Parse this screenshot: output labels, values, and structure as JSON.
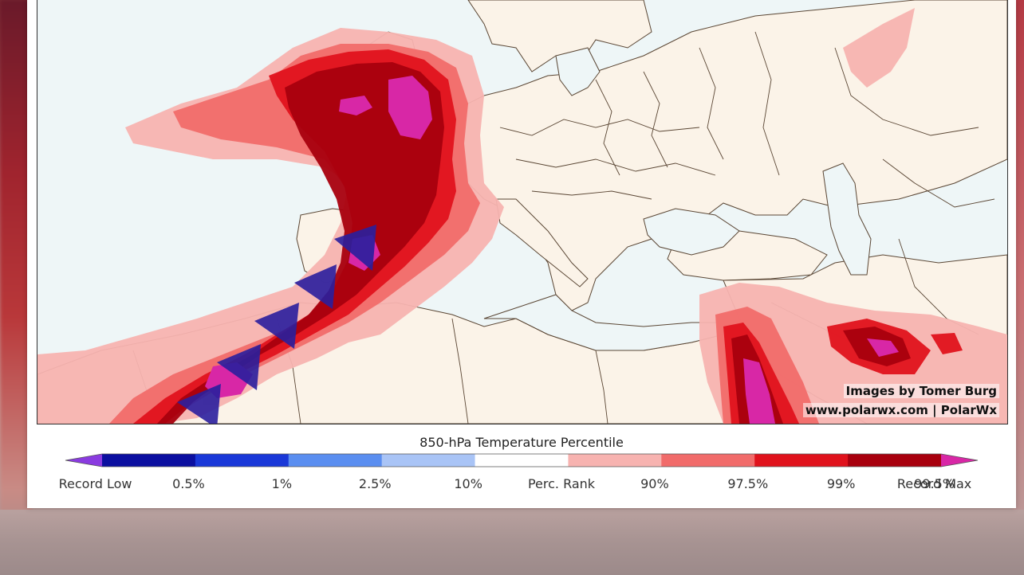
{
  "map": {
    "credit_line1": "Images by Tomer Burg",
    "credit_line2": "www.polarwx.com | PolarWx",
    "colors": {
      "ocean": "#eef6f7",
      "land": "#fbf3e8",
      "border": "#5a4634",
      "p90": "#f7b3b0",
      "p97_5": "#f16b6a",
      "p99": "#e0121c",
      "p99_5": "#a8000e",
      "record_max": "#d827a6",
      "front_triangle": "#2a1f9e"
    },
    "front_symbol": "cold-front-triangles"
  },
  "colorbar": {
    "title": "850-hPa Temperature Percentile",
    "labels": [
      "Record Low",
      "0.5%",
      "1%",
      "2.5%",
      "10%",
      "Perc. Rank",
      "90%",
      "97.5%",
      "99%",
      "99.5%",
      "Record Max"
    ],
    "colors": [
      "#8a3be0",
      "#0b0fa0",
      "#1a38d8",
      "#5a8ef0",
      "#a9c4f6",
      "#ffffff",
      "#f7b3b0",
      "#f16b6a",
      "#e0121c",
      "#a8000e",
      "#d827a6"
    ]
  }
}
